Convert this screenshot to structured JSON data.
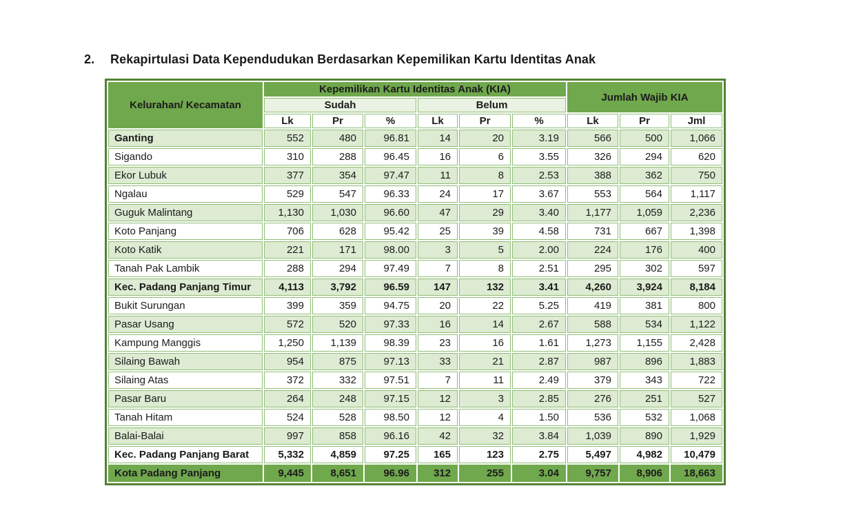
{
  "section": {
    "number": "2.",
    "title": "Rekapirtulasi Data Kependudukan Berdasarkan Kepemilikan Kartu Identitas Anak"
  },
  "table": {
    "header": {
      "kelurahan": "Kelurahan/ Kecamatan",
      "kia_group": "Kepemilikan Kartu Identitas Anak (KIA)",
      "sudah": "Sudah",
      "belum": "Belum",
      "jumlah_wajib": "Jumlah Wajib KIA",
      "sub_columns": [
        "Lk",
        "Pr",
        "%",
        "Lk",
        "Pr",
        "%",
        "Lk",
        "Pr",
        "Jml"
      ]
    },
    "rows": [
      {
        "name": "Ganting",
        "values": [
          "552",
          "480",
          "96.81",
          "14",
          "20",
          "3.19",
          "566",
          "500",
          "1,066"
        ],
        "bold": false,
        "name_bold": true,
        "total": false
      },
      {
        "name": "Sigando",
        "values": [
          "310",
          "288",
          "96.45",
          "16",
          "6",
          "3.55",
          "326",
          "294",
          "620"
        ],
        "bold": false,
        "name_bold": false,
        "total": false
      },
      {
        "name": "Ekor Lubuk",
        "values": [
          "377",
          "354",
          "97.47",
          "11",
          "8",
          "2.53",
          "388",
          "362",
          "750"
        ],
        "bold": false,
        "name_bold": false,
        "total": false
      },
      {
        "name": "Ngalau",
        "values": [
          "529",
          "547",
          "96.33",
          "24",
          "17",
          "3.67",
          "553",
          "564",
          "1,117"
        ],
        "bold": false,
        "name_bold": false,
        "total": false
      },
      {
        "name": "Guguk Malintang",
        "values": [
          "1,130",
          "1,030",
          "96.60",
          "47",
          "29",
          "3.40",
          "1,177",
          "1,059",
          "2,236"
        ],
        "bold": false,
        "name_bold": false,
        "total": false
      },
      {
        "name": "Koto Panjang",
        "values": [
          "706",
          "628",
          "95.42",
          "25",
          "39",
          "4.58",
          "731",
          "667",
          "1,398"
        ],
        "bold": false,
        "name_bold": false,
        "total": false
      },
      {
        "name": "Koto Katik",
        "values": [
          "221",
          "171",
          "98.00",
          "3",
          "5",
          "2.00",
          "224",
          "176",
          "400"
        ],
        "bold": false,
        "name_bold": false,
        "total": false
      },
      {
        "name": "Tanah Pak Lambik",
        "values": [
          "288",
          "294",
          "97.49",
          "7",
          "8",
          "2.51",
          "295",
          "302",
          "597"
        ],
        "bold": false,
        "name_bold": false,
        "total": false
      },
      {
        "name": "Kec. Padang Panjang Timur",
        "values": [
          "4,113",
          "3,792",
          "96.59",
          "147",
          "132",
          "3.41",
          "4,260",
          "3,924",
          "8,184"
        ],
        "bold": true,
        "name_bold": true,
        "total": false
      },
      {
        "name": "Bukit Surungan",
        "values": [
          "399",
          "359",
          "94.75",
          "20",
          "22",
          "5.25",
          "419",
          "381",
          "800"
        ],
        "bold": false,
        "name_bold": false,
        "total": false
      },
      {
        "name": "Pasar Usang",
        "values": [
          "572",
          "520",
          "97.33",
          "16",
          "14",
          "2.67",
          "588",
          "534",
          "1,122"
        ],
        "bold": false,
        "name_bold": false,
        "total": false
      },
      {
        "name": "Kampung Manggis",
        "values": [
          "1,250",
          "1,139",
          "98.39",
          "23",
          "16",
          "1.61",
          "1,273",
          "1,155",
          "2,428"
        ],
        "bold": false,
        "name_bold": false,
        "total": false
      },
      {
        "name": "Silaing Bawah",
        "values": [
          "954",
          "875",
          "97.13",
          "33",
          "21",
          "2.87",
          "987",
          "896",
          "1,883"
        ],
        "bold": false,
        "name_bold": false,
        "total": false
      },
      {
        "name": "Silaing Atas",
        "values": [
          "372",
          "332",
          "97.51",
          "7",
          "11",
          "2.49",
          "379",
          "343",
          "722"
        ],
        "bold": false,
        "name_bold": false,
        "total": false
      },
      {
        "name": "Pasar Baru",
        "values": [
          "264",
          "248",
          "97.15",
          "12",
          "3",
          "2.85",
          "276",
          "251",
          "527"
        ],
        "bold": false,
        "name_bold": false,
        "total": false
      },
      {
        "name": "Tanah Hitam",
        "values": [
          "524",
          "528",
          "98.50",
          "12",
          "4",
          "1.50",
          "536",
          "532",
          "1,068"
        ],
        "bold": false,
        "name_bold": false,
        "total": false
      },
      {
        "name": "Balai-Balai",
        "values": [
          "997",
          "858",
          "96.16",
          "42",
          "32",
          "3.84",
          "1,039",
          "890",
          "1,929"
        ],
        "bold": false,
        "name_bold": false,
        "total": false
      },
      {
        "name": "Kec. Padang Panjang Barat",
        "values": [
          "5,332",
          "4,859",
          "97.25",
          "165",
          "123",
          "2.75",
          "5,497",
          "4,982",
          "10,479"
        ],
        "bold": true,
        "name_bold": true,
        "total": false
      },
      {
        "name": "Kota Padang Panjang",
        "values": [
          "9,445",
          "8,651",
          "96.96",
          "312",
          "255",
          "3.04",
          "9,757",
          "8,906",
          "18,663"
        ],
        "bold": true,
        "name_bold": true,
        "total": true
      }
    ]
  },
  "colors": {
    "header_green": "#70A84D",
    "total_green": "#70A84D",
    "row_light_green": "#DDEBD2",
    "subheader_light_green": "#EAF3E3",
    "cell_border_green": "#8EBC74",
    "outer_border_green": "#538135",
    "text": "#1b1b1b"
  }
}
